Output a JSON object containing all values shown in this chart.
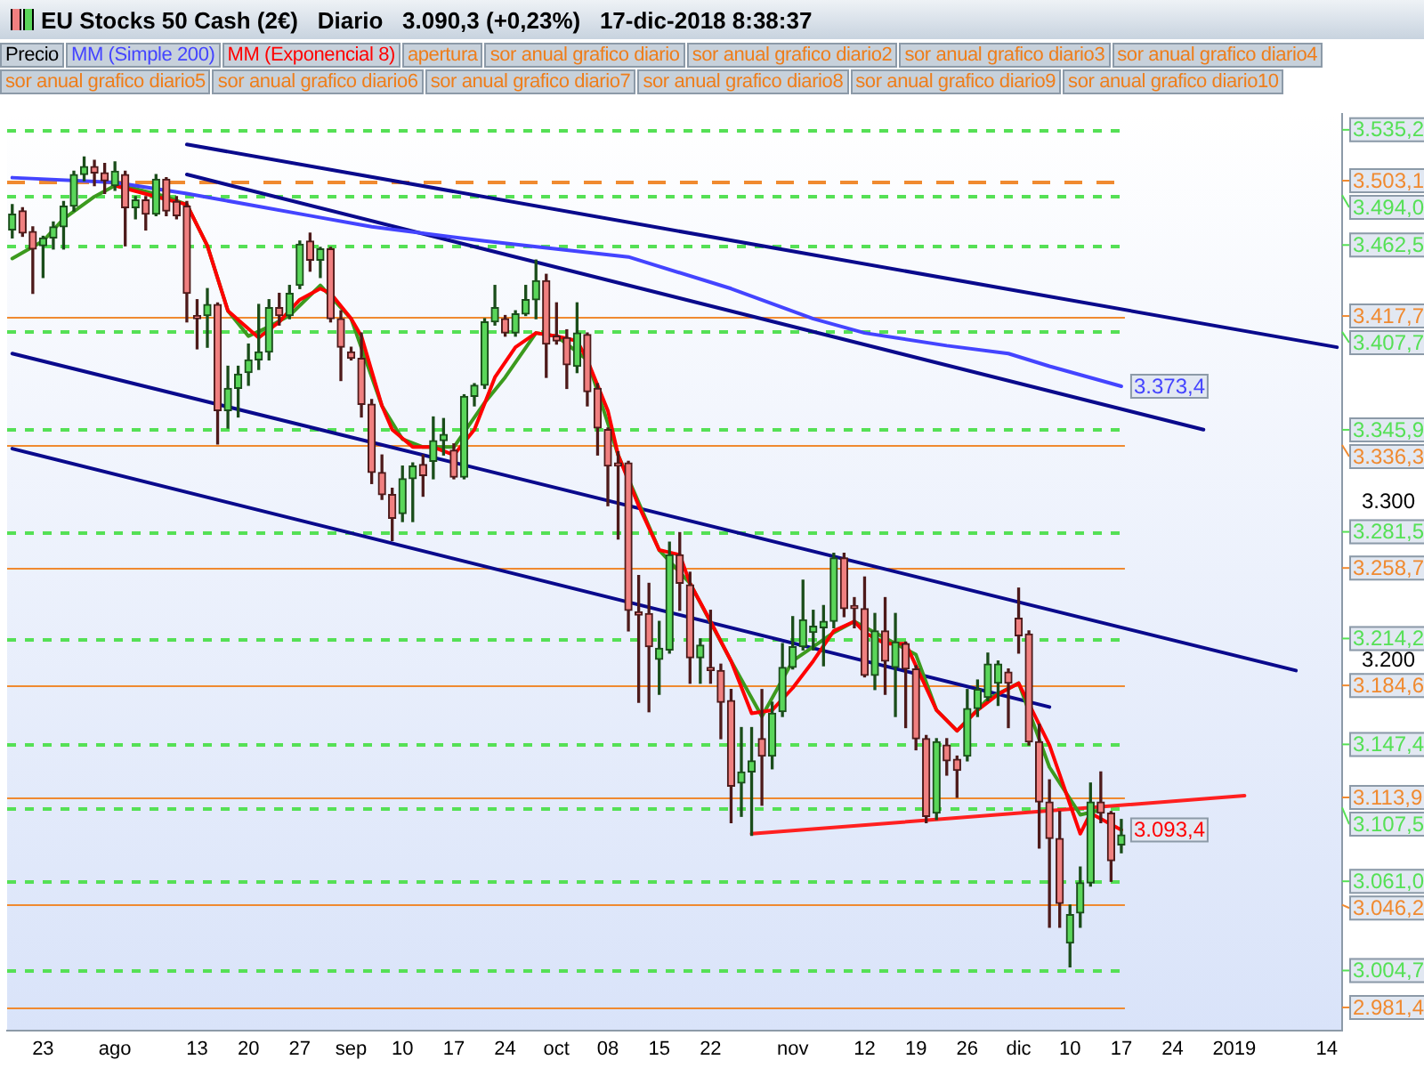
{
  "chart_data": {
    "type": "candlestick",
    "title": "EU Stocks 50 Cash (2€)",
    "subtitle": "Diario   3.090,3 (+0,23%)   17-dic-2018 8:38:37",
    "legend": "top left",
    "categories": [
      null,
      null,
      null,
      "23",
      null,
      null,
      null,
      null,
      null,
      null,
      "ago",
      null,
      null,
      null,
      null,
      null,
      null,
      null,
      "13",
      null,
      null,
      null,
      null,
      "20",
      null,
      null,
      null,
      null,
      "27",
      null,
      null,
      null,
      null,
      "sep",
      null,
      null,
      null,
      null,
      "10",
      null,
      null,
      null,
      null,
      "17",
      null,
      null,
      null,
      null,
      "24",
      null,
      null,
      null,
      null,
      "oct",
      null,
      null,
      null,
      null,
      "08",
      null,
      null,
      null,
      null,
      "15",
      null,
      null,
      null,
      null,
      "22",
      null,
      null,
      null,
      null,
      null,
      null,
      null,
      "nov",
      null,
      null,
      null,
      null,
      null,
      null,
      "12",
      null,
      null,
      null,
      null,
      "19",
      null,
      null,
      null,
      null,
      "26",
      null,
      null,
      null,
      null,
      "dic",
      null,
      null,
      null,
      null,
      "10",
      null,
      null,
      null,
      null,
      "17",
      null,
      null,
      null,
      null,
      "24",
      null,
      null,
      null,
      null,
      null,
      "2019",
      null,
      null,
      null,
      null,
      null,
      null,
      null,
      null,
      "14",
      null
    ],
    "ylim": [
      2967,
      3545
    ],
    "yticks": [
      {
        "value": 3200,
        "label": "3.200"
      },
      {
        "value": 3300,
        "label": "3.300"
      }
    ],
    "series": [
      {
        "name": "Precio",
        "ohlc": [
          [
            3472,
            3488,
            3467,
            3482
          ],
          [
            3484,
            3486,
            3468,
            3470
          ],
          [
            3471,
            3474,
            3432,
            3460
          ],
          [
            3462,
            3468,
            3442,
            3467
          ],
          [
            3467,
            3477,
            3460,
            3474
          ],
          [
            3474,
            3490,
            3460,
            3487
          ],
          [
            3487,
            3509,
            3484,
            3507
          ],
          [
            3507,
            3518,
            3503,
            3512
          ],
          [
            3512,
            3516,
            3500,
            3508
          ],
          [
            3508,
            3514,
            3495,
            3503
          ],
          [
            3500,
            3515,
            3497,
            3509
          ],
          [
            3507,
            3509,
            3462,
            3486
          ],
          [
            3486,
            3493,
            3479,
            3491
          ],
          [
            3491,
            3493,
            3472,
            3482
          ],
          [
            3482,
            3507,
            3481,
            3504
          ],
          [
            3504,
            3505,
            3481,
            3484
          ],
          [
            3490,
            3493,
            3479,
            3481
          ],
          [
            3487,
            3490,
            3414,
            3432
          ],
          [
            3418,
            3428,
            3397,
            3416
          ],
          [
            3418,
            3435,
            3398,
            3425
          ],
          [
            3425,
            3426,
            3337,
            3358
          ],
          [
            3358,
            3386,
            3347,
            3372
          ],
          [
            3372,
            3386,
            3354,
            3381
          ],
          [
            3382,
            3400,
            3374,
            3390
          ],
          [
            3390,
            3425,
            3384,
            3395
          ],
          [
            3395,
            3428,
            3390,
            3423
          ],
          [
            3423,
            3432,
            3412,
            3418
          ],
          [
            3418,
            3437,
            3416,
            3432
          ],
          [
            3437,
            3465,
            3435,
            3463
          ],
          [
            3465,
            3470,
            3446,
            3453
          ],
          [
            3453,
            3461,
            3442,
            3460
          ],
          [
            3460,
            3461,
            3414,
            3416
          ],
          [
            3416,
            3421,
            3377,
            3398
          ],
          [
            3395,
            3398,
            3390,
            3391
          ],
          [
            3391,
            3407,
            3354,
            3362
          ],
          [
            3362,
            3365,
            3312,
            3319
          ],
          [
            3319,
            3330,
            3302,
            3305
          ],
          [
            3305,
            3309,
            3276,
            3290
          ],
          [
            3293,
            3323,
            3288,
            3315
          ],
          [
            3315,
            3325,
            3288,
            3323
          ],
          [
            3324,
            3330,
            3304,
            3317
          ],
          [
            3326,
            3354,
            3315,
            3339
          ],
          [
            3339,
            3353,
            3330,
            3343
          ],
          [
            3333,
            3337,
            3315,
            3316
          ],
          [
            3316,
            3368,
            3315,
            3367
          ],
          [
            3367,
            3375,
            3361,
            3374
          ],
          [
            3374,
            3416,
            3372,
            3414
          ],
          [
            3414,
            3437,
            3412,
            3423
          ],
          [
            3416,
            3418,
            3405,
            3407
          ],
          [
            3407,
            3421,
            3405,
            3419
          ],
          [
            3419,
            3437,
            3418,
            3428
          ],
          [
            3428,
            3453,
            3416,
            3440
          ],
          [
            3440,
            3444,
            3379,
            3400
          ],
          [
            3405,
            3426,
            3400,
            3402
          ],
          [
            3404,
            3409,
            3372,
            3387
          ],
          [
            3386,
            3426,
            3382,
            3407
          ],
          [
            3406,
            3407,
            3361,
            3370
          ],
          [
            3372,
            3375,
            3330,
            3347
          ],
          [
            3346,
            3347,
            3298,
            3323
          ],
          [
            3325,
            3332,
            3277,
            3323
          ],
          [
            3325,
            3326,
            3219,
            3232
          ],
          [
            3231,
            3254,
            3174,
            3229
          ],
          [
            3230,
            3249,
            3168,
            3209
          ],
          [
            3201,
            3225,
            3179,
            3208
          ],
          [
            3207,
            3275,
            3205,
            3267
          ],
          [
            3267,
            3281,
            3232,
            3249
          ],
          [
            3248,
            3256,
            3186,
            3202
          ],
          [
            3202,
            3214,
            3186,
            3210
          ],
          [
            3196,
            3232,
            3186,
            3194
          ],
          [
            3194,
            3198,
            3151,
            3174
          ],
          [
            3175,
            3182,
            3098,
            3121
          ],
          [
            3123,
            3158,
            3102,
            3130
          ],
          [
            3130,
            3158,
            3090,
            3137
          ],
          [
            3151,
            3182,
            3109,
            3140
          ],
          [
            3140,
            3174,
            3132,
            3167
          ],
          [
            3168,
            3211,
            3165,
            3196
          ],
          [
            3196,
            3228,
            3195,
            3209
          ],
          [
            3209,
            3251,
            3207,
            3226
          ],
          [
            3218,
            3232,
            3207,
            3222
          ],
          [
            3221,
            3235,
            3197,
            3225
          ],
          [
            3225,
            3268,
            3221,
            3265
          ],
          [
            3265,
            3268,
            3228,
            3233
          ],
          [
            3235,
            3240,
            3221,
            3233
          ],
          [
            3233,
            3253,
            3190,
            3191
          ],
          [
            3191,
            3230,
            3182,
            3219
          ],
          [
            3219,
            3240,
            3179,
            3200
          ],
          [
            3196,
            3230,
            3165,
            3212
          ],
          [
            3211,
            3212,
            3158,
            3195
          ],
          [
            3195,
            3197,
            3144,
            3151
          ],
          [
            3151,
            3153,
            3098,
            3102
          ],
          [
            3104,
            3151,
            3100,
            3149
          ],
          [
            3147,
            3151,
            3128,
            3137
          ],
          [
            3138,
            3140,
            3114,
            3131
          ],
          [
            3140,
            3182,
            3137,
            3170
          ],
          [
            3170,
            3188,
            3165,
            3182
          ],
          [
            3177,
            3205,
            3175,
            3198
          ],
          [
            3186,
            3200,
            3172,
            3198
          ],
          [
            3193,
            3195,
            3158,
            3186
          ],
          [
            3227,
            3246,
            3205,
            3216
          ],
          [
            3217,
            3219,
            3147,
            3149
          ],
          [
            3149,
            3160,
            3082,
            3111
          ],
          [
            3111,
            3125,
            3032,
            3088
          ],
          [
            3088,
            3105,
            3032,
            3047
          ],
          [
            3022,
            3046,
            3007,
            3040
          ],
          [
            3041,
            3070,
            3032,
            3060
          ],
          [
            3060,
            3123,
            3058,
            3111
          ],
          [
            3111,
            3130,
            3098,
            3104
          ],
          [
            3104,
            3105,
            3061,
            3074
          ],
          [
            3084,
            3100,
            3079,
            3090.3
          ],
          null,
          null,
          null,
          null,
          null,
          null,
          null,
          null,
          null,
          null,
          null,
          null,
          null,
          null,
          null,
          null,
          null,
          null,
          null,
          null,
          null
        ]
      },
      {
        "name": "MM (Simple 200)",
        "type": "line",
        "color": "#4444ff",
        "value_labels": [
          null,
          null,
          null,
          null,
          null,
          null,
          null,
          null,
          null,
          null,
          null,
          null,
          null,
          null,
          null,
          null,
          null,
          null,
          null,
          null,
          null,
          null,
          null,
          null,
          null,
          null,
          null,
          null,
          null,
          null,
          null,
          null,
          null,
          null,
          null,
          null,
          null,
          null,
          null,
          null,
          null,
          null,
          null,
          null,
          null,
          null,
          null,
          null,
          null,
          null,
          null,
          null,
          null,
          null,
          null,
          null,
          null,
          null,
          null,
          null,
          null,
          null,
          null,
          null,
          null,
          null,
          null,
          null,
          null,
          null,
          null,
          null,
          null,
          null,
          null,
          null,
          null,
          null,
          null,
          null,
          null,
          null,
          null,
          null,
          null,
          null,
          null,
          null,
          null,
          null,
          null,
          null,
          null,
          null,
          null,
          null,
          null,
          null,
          null,
          null,
          null,
          null,
          null,
          null,
          null,
          null,
          null,
          null,
          "3.373,4",
          null,
          null,
          null,
          null,
          null,
          null,
          null,
          null,
          null,
          null,
          null,
          null,
          null,
          null,
          null,
          null,
          null,
          null,
          null,
          null,
          null
        ],
        "values": [
          3505,
          null,
          null,
          null,
          null,
          null,
          null,
          null,
          null,
          null,
          3502,
          null,
          null,
          null,
          null,
          null,
          null,
          3495,
          null,
          null,
          null,
          null,
          null,
          null,
          null,
          null,
          null,
          null,
          null,
          3481,
          null,
          null,
          null,
          null,
          null,
          3474,
          null,
          null,
          null,
          null,
          null,
          null,
          null,
          null,
          null,
          null,
          3465,
          null,
          null,
          null,
          null,
          null,
          null,
          null,
          null,
          null,
          null,
          null,
          null,
          null,
          3455,
          null,
          null,
          null,
          null,
          null,
          null,
          null,
          null,
          null,
          3435,
          null,
          null,
          null,
          null,
          null,
          null,
          null,
          3416,
          null,
          null,
          null,
          null,
          3407,
          null,
          null,
          null,
          null,
          null,
          null,
          null,
          3399,
          null,
          null,
          null,
          null,
          null,
          3394,
          null,
          null,
          null,
          3386,
          null,
          null,
          null,
          null,
          null,
          null,
          3373.4,
          null,
          null,
          null,
          null,
          null,
          null,
          null,
          null,
          null,
          null,
          null,
          null,
          null,
          null,
          null,
          null,
          null,
          null,
          null,
          null,
          null
        ]
      },
      {
        "name": "MM (Exponencial 8)",
        "type": "line",
        "color": "#ff0000",
        "value_labels": [
          null,
          null,
          null,
          null,
          null,
          null,
          null,
          null,
          null,
          null,
          null,
          null,
          null,
          null,
          null,
          null,
          null,
          null,
          null,
          null,
          null,
          null,
          null,
          null,
          null,
          null,
          null,
          null,
          null,
          null,
          null,
          null,
          null,
          null,
          null,
          null,
          null,
          null,
          null,
          null,
          null,
          null,
          null,
          null,
          null,
          null,
          null,
          null,
          null,
          null,
          null,
          null,
          null,
          null,
          null,
          null,
          null,
          null,
          null,
          null,
          null,
          null,
          null,
          null,
          null,
          null,
          null,
          null,
          null,
          null,
          null,
          null,
          null,
          null,
          null,
          null,
          null,
          null,
          null,
          null,
          null,
          null,
          null,
          null,
          null,
          null,
          null,
          null,
          null,
          null,
          null,
          null,
          null,
          null,
          null,
          null,
          null,
          null,
          null,
          null,
          null,
          null,
          null,
          null,
          null,
          null,
          null,
          null,
          "3.093,4",
          null,
          null,
          null,
          null,
          null,
          null,
          null,
          null,
          null,
          null,
          null,
          null,
          null,
          null,
          null,
          null,
          null,
          null,
          null,
          null,
          null
        ],
        "values": [
          null,
          null,
          null,
          null,
          null,
          null,
          null,
          null,
          null,
          null,
          3500,
          null,
          null,
          null,
          3493,
          null,
          null,
          3488,
          null,
          3462,
          null,
          3421,
          null,
          null,
          3404,
          null,
          3414,
          null,
          3428,
          null,
          3435,
          3432,
          null,
          3416,
          3405,
          3383,
          3361,
          3346,
          null,
          3335,
          null,
          3335,
          null,
          3330,
          null,
          3346,
          null,
          3379,
          null,
          3398,
          null,
          3407,
          null,
          3405,
          null,
          3402,
          3390,
          null,
          3358,
          3330,
          null,
          3298,
          null,
          3270,
          null,
          3267,
          3249,
          null,
          3225,
          null,
          3200,
          null,
          3167,
          null,
          3169,
          null,
          3183,
          null,
          3200,
          null,
          3219,
          null,
          3225,
          3218,
          null,
          3211,
          null,
          3211,
          null,
          3183,
          3169,
          null,
          3156,
          null,
          3169,
          null,
          3179,
          null,
          3186,
          null,
          null,
          3147,
          null,
          null,
          3091,
          3104,
          null,
          null,
          3093.4,
          null,
          null,
          null,
          null,
          null,
          null,
          null,
          null,
          null,
          null,
          null,
          null,
          null,
          null,
          null,
          null,
          null,
          null,
          null,
          null,
          null
        ]
      },
      {
        "type": "line",
        "color": "#3c9a1e",
        "values": [
          3454,
          null,
          null,
          3465,
          null,
          3479,
          null,
          null,
          3493,
          null,
          3500,
          null,
          3498,
          null,
          null,
          3493,
          null,
          3488,
          null,
          3462,
          null,
          3421,
          null,
          3405,
          null,
          3411,
          null,
          3418,
          null,
          null,
          3437,
          null,
          null,
          3416,
          null,
          null,
          3361,
          null,
          3340,
          null,
          3335,
          null,
          null,
          3335,
          null,
          null,
          3363,
          null,
          3379,
          null,
          null,
          3407,
          null,
          3405,
          null,
          null,
          3390,
          null,
          null,
          3330,
          null,
          null,
          null,
          3270,
          null,
          null,
          3249,
          null,
          null,
          null,
          3200,
          null,
          null,
          3165,
          null,
          null,
          3200,
          null,
          null,
          null,
          3218,
          null,
          3225,
          null,
          3218,
          null,
          3211,
          null,
          3204,
          null,
          3169,
          null,
          3156,
          null,
          null,
          3176,
          null,
          null,
          3186,
          null,
          null,
          3133,
          null,
          null,
          3103,
          null,
          3106,
          null,
          null,
          null,
          null,
          null,
          null,
          null,
          null,
          null,
          null,
          null,
          null,
          null,
          null,
          null,
          null,
          null,
          null,
          null,
          null,
          null,
          null,
          null
        ]
      },
      {
        "type": "line",
        "color": "#0a0a8c",
        "values": [
          null,
          null,
          null,
          null,
          null,
          null,
          null,
          null,
          null,
          null,
          null,
          null,
          null,
          null,
          null,
          null,
          null,
          3526,
          null,
          null,
          null,
          null,
          null,
          null,
          null,
          null,
          null,
          null,
          null,
          null,
          null,
          null,
          null,
          null,
          null,
          null,
          null,
          null,
          null,
          null,
          null,
          null,
          null,
          null,
          null,
          null,
          null,
          null,
          null,
          null,
          null,
          null,
          null,
          null,
          null,
          null,
          null,
          null,
          null,
          null,
          null,
          null,
          null,
          null,
          null,
          null,
          null,
          null,
          null,
          null,
          null,
          null,
          null,
          null,
          null,
          null,
          null,
          null,
          null,
          null,
          null,
          null,
          null,
          null,
          null,
          null,
          null,
          null,
          null,
          null,
          null,
          null,
          null,
          null,
          null,
          null,
          null,
          null,
          null,
          null,
          null,
          null,
          null,
          null,
          null,
          null,
          null,
          null,
          null,
          null,
          null,
          null,
          null,
          null,
          null,
          null,
          null,
          null,
          null,
          null,
          null,
          null,
          null,
          null,
          null,
          null,
          null,
          null,
          null,
          3398
        ]
      },
      {
        "type": "line",
        "color": "#0a0a8c",
        "values": [
          null,
          null,
          null,
          null,
          null,
          null,
          null,
          null,
          null,
          null,
          null,
          null,
          null,
          null,
          null,
          null,
          null,
          3507,
          null,
          null,
          null,
          null,
          null,
          null,
          null,
          null,
          null,
          null,
          null,
          null,
          null,
          null,
          null,
          null,
          null,
          null,
          null,
          null,
          null,
          null,
          null,
          null,
          null,
          null,
          null,
          null,
          null,
          null,
          null,
          null,
          null,
          null,
          null,
          null,
          null,
          null,
          null,
          null,
          null,
          null,
          null,
          null,
          null,
          null,
          null,
          null,
          null,
          null,
          null,
          null,
          null,
          null,
          null,
          null,
          null,
          null,
          null,
          null,
          null,
          null,
          null,
          null,
          null,
          null,
          null,
          null,
          null,
          null,
          null,
          null,
          null,
          null,
          null,
          null,
          null,
          null,
          null,
          null,
          null,
          null,
          null,
          null,
          null,
          null,
          null,
          null,
          null,
          null,
          null,
          null,
          null,
          null,
          null,
          null,
          null,
          null,
          3346,
          null,
          null,
          null,
          null,
          null,
          null,
          null,
          null,
          null,
          null,
          null,
          null,
          null
        ]
      },
      {
        "type": "line",
        "color": "#0a0a8c",
        "values": [
          3394,
          null,
          null,
          null,
          null,
          null,
          null,
          null,
          null,
          null,
          null,
          null,
          null,
          null,
          null,
          null,
          null,
          null,
          null,
          null,
          null,
          null,
          null,
          null,
          null,
          null,
          null,
          null,
          null,
          null,
          null,
          null,
          null,
          null,
          null,
          null,
          null,
          null,
          null,
          null,
          null,
          null,
          null,
          null,
          null,
          null,
          null,
          null,
          null,
          null,
          null,
          null,
          null,
          null,
          null,
          null,
          null,
          null,
          null,
          null,
          null,
          null,
          null,
          null,
          null,
          null,
          null,
          null,
          null,
          null,
          null,
          null,
          null,
          null,
          null,
          null,
          null,
          null,
          null,
          null,
          null,
          null,
          null,
          null,
          null,
          null,
          null,
          null,
          null,
          null,
          null,
          null,
          null,
          null,
          null,
          null,
          null,
          null,
          null,
          null,
          null,
          null,
          null,
          null,
          null,
          null,
          null,
          null,
          null,
          null,
          null,
          null,
          null,
          null,
          null,
          null,
          null,
          null,
          null,
          null,
          null,
          null,
          null,
          null,
          null,
          3194,
          null,
          null,
          null,
          null
        ]
      },
      {
        "type": "line",
        "color": "#0a0a8c",
        "values": [
          3334,
          null,
          null,
          null,
          null,
          null,
          null,
          null,
          null,
          null,
          null,
          null,
          null,
          null,
          null,
          null,
          null,
          null,
          null,
          null,
          null,
          null,
          null,
          null,
          null,
          null,
          null,
          null,
          null,
          null,
          null,
          null,
          null,
          null,
          null,
          null,
          null,
          null,
          null,
          null,
          null,
          null,
          null,
          null,
          null,
          null,
          null,
          null,
          null,
          null,
          null,
          null,
          null,
          null,
          null,
          null,
          null,
          null,
          null,
          null,
          null,
          null,
          null,
          null,
          null,
          null,
          null,
          null,
          null,
          null,
          null,
          null,
          null,
          null,
          null,
          null,
          null,
          null,
          null,
          null,
          null,
          null,
          null,
          null,
          null,
          null,
          null,
          null,
          null,
          null,
          null,
          null,
          null,
          null,
          null,
          null,
          null,
          null,
          null,
          null,
          null,
          3171,
          null,
          null,
          null,
          null,
          null,
          null,
          null,
          null,
          null,
          null,
          null,
          null,
          null,
          null,
          null,
          null,
          null,
          null,
          null,
          null,
          null,
          null,
          null,
          null,
          null,
          null,
          null,
          null
        ]
      },
      {
        "type": "line",
        "color": "#ff2020",
        "values": [
          null,
          null,
          null,
          null,
          null,
          null,
          null,
          null,
          null,
          null,
          null,
          null,
          null,
          null,
          null,
          null,
          null,
          null,
          null,
          null,
          null,
          null,
          null,
          null,
          null,
          null,
          null,
          null,
          null,
          null,
          null,
          null,
          null,
          null,
          null,
          null,
          null,
          null,
          null,
          null,
          null,
          null,
          null,
          null,
          null,
          null,
          null,
          null,
          null,
          null,
          null,
          null,
          null,
          null,
          null,
          null,
          null,
          null,
          null,
          null,
          null,
          null,
          null,
          null,
          null,
          null,
          null,
          null,
          null,
          null,
          null,
          null,
          3091,
          null,
          null,
          null,
          null,
          null,
          null,
          null,
          null,
          null,
          null,
          null,
          null,
          null,
          null,
          null,
          null,
          null,
          null,
          null,
          null,
          null,
          null,
          null,
          null,
          null,
          null,
          null,
          null,
          null,
          null,
          null,
          null,
          null,
          null,
          null,
          null,
          null,
          null,
          null,
          null,
          null,
          null,
          null,
          null,
          null,
          null,
          null,
          3115,
          null,
          null,
          null,
          null,
          null,
          null,
          null,
          null,
          null
        ]
      }
    ],
    "ref_lines": [
      {
        "axis": "y",
        "value": 3535.2,
        "label": "3.535,2",
        "color": "#55e055",
        "line_style": "dashed"
      },
      {
        "axis": "y",
        "value": 3503.1,
        "label": "3.503,1",
        "color": "#f08a30",
        "line_style": "dashed"
      },
      {
        "axis": "y",
        "value": 3494.0,
        "label": "3.494,0",
        "color": "#55e055",
        "line_style": "dashed"
      },
      {
        "axis": "y",
        "value": 3462.5,
        "label": "3.462,5",
        "color": "#55e055",
        "line_style": "dashed"
      },
      {
        "axis": "y",
        "value": 3417.7,
        "label": "3.417,7",
        "color": "#f08a30",
        "line_style": "solid"
      },
      {
        "axis": "y",
        "value": 3407.7,
        "label": "3.407,7",
        "color": "#55e055",
        "line_style": "dashed"
      },
      {
        "axis": "y",
        "value": 3345.9,
        "label": "3.345,9",
        "color": "#55e055",
        "line_style": "dashed"
      },
      {
        "axis": "y",
        "value": 3336.3,
        "label": "3.336,3",
        "color": "#f08a30",
        "line_style": "solid"
      },
      {
        "axis": "y",
        "value": 3281.5,
        "label": "3.281,5",
        "color": "#55e055",
        "line_style": "dashed"
      },
      {
        "axis": "y",
        "value": 3258.7,
        "label": "3.258,7",
        "color": "#f08a30",
        "line_style": "solid"
      },
      {
        "axis": "y",
        "value": 3214.2,
        "label": "3.214,2",
        "color": "#55e055",
        "line_style": "dashed"
      },
      {
        "axis": "y",
        "value": 3184.6,
        "label": "3.184,6",
        "color": "#f08a30",
        "line_style": "solid"
      },
      {
        "axis": "y",
        "value": 3147.4,
        "label": "3.147,4",
        "color": "#55e055",
        "line_style": "dashed"
      },
      {
        "axis": "y",
        "value": 3113.9,
        "label": "3.113,9",
        "color": "#f08a30",
        "line_style": "solid"
      },
      {
        "axis": "y",
        "value": 3107.5,
        "label": "3.107,5",
        "color": "#55e055",
        "line_style": "dashed"
      },
      {
        "axis": "y",
        "value": 3061.0,
        "label": "3.061,0",
        "color": "#55e055",
        "line_style": "dashed"
      },
      {
        "axis": "y",
        "value": 3046.2,
        "label": "3.046,2",
        "color": "#f08a30",
        "line_style": "solid"
      },
      {
        "axis": "y",
        "value": 3004.7,
        "label": "3.004,7",
        "color": "#55e055",
        "line_style": "dashed"
      },
      {
        "axis": "y",
        "value": 2981.4,
        "label": "2.981,4",
        "color": "#f08a30",
        "line_style": "solid"
      }
    ],
    "annotations": [
      "apertura",
      "sor anual grafico diario",
      "sor anual grafico diario2",
      "sor anual grafico diario3",
      "sor anual grafico diario4",
      "sor anual grafico diario5",
      "sor anual grafico diario6",
      "sor anual grafico diario7",
      "sor anual grafico diario8",
      "sor anual grafico diario9",
      "sor anual grafico diario10"
    ]
  }
}
